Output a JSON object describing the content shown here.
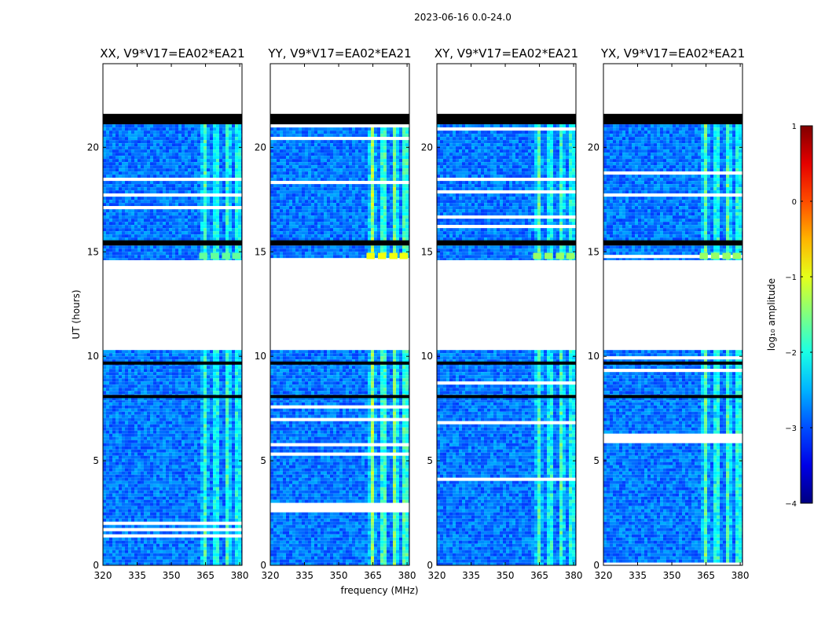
{
  "figure": {
    "title": "2023-06-16 0.0-24.0",
    "xlabel": "frequency (MHz)",
    "ylabel": "UT (hours)"
  },
  "chart_data": {
    "type": "heatmap",
    "title": "2023-06-16 0.0-24.0",
    "xlabel": "frequency (MHz)",
    "ylabel": "UT (hours)",
    "xlim": [
      320,
      381
    ],
    "ylim": [
      0,
      24
    ],
    "xticks": [
      320,
      335,
      350,
      365,
      380
    ],
    "yticks": [
      0,
      5,
      10,
      15,
      20
    ],
    "panels": [
      {
        "title": "XX, V9*V17=EA02*EA21",
        "rfi_strength": 0.55,
        "burst_strength": 0.35
      },
      {
        "title": "YY, V9*V17=EA02*EA21",
        "rfi_strength": 0.85,
        "burst_strength": 0.75
      },
      {
        "title": "XY, V9*V17=EA02*EA21",
        "rfi_strength": 0.6,
        "burst_strength": 0.5
      },
      {
        "title": "YX, V9*V17=EA02*EA21",
        "rfi_strength": 0.65,
        "burst_strength": 0.5
      }
    ],
    "data_segments_hours": [
      [
        0,
        7.8
      ],
      [
        7.8,
        10.3
      ],
      [
        14.6,
        15.3
      ],
      [
        15.5,
        21.4
      ]
    ],
    "flagged_gaps_hours": [
      [
        10.3,
        14.6
      ],
      [
        21.6,
        24
      ]
    ],
    "dark_rows_hours": [
      [
        15.3,
        15.55
      ],
      [
        21.1,
        21.6
      ],
      [
        8.0,
        8.15
      ],
      [
        9.6,
        9.75
      ]
    ],
    "rfi_band_centers_mhz": [
      364,
      369,
      374,
      378.5
    ],
    "colorbar": {
      "label": "log₁₀ amplitude",
      "range": [
        -4,
        1
      ],
      "ticks": [
        1,
        0,
        -1,
        -2,
        -3,
        -4
      ],
      "colormap": "jet"
    },
    "colors": {
      "background": "#00208f",
      "low": "#1e3cff",
      "mid": "#1ea0ff",
      "high": "#7fffb0",
      "peak": "#ffff40"
    }
  }
}
